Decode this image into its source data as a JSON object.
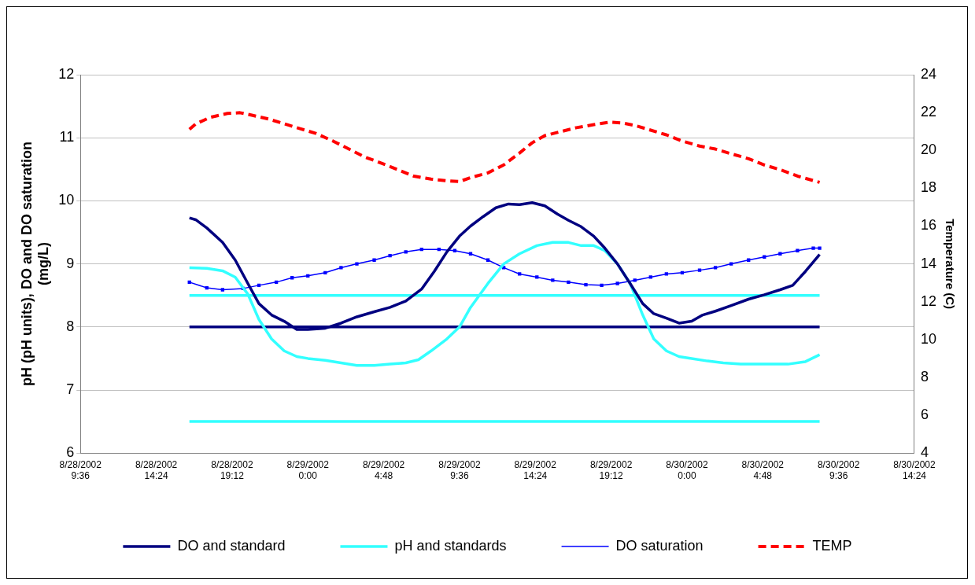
{
  "chart_data": {
    "type": "line",
    "ylabel": "pH (pH units), DO and DO saturation (mg/L)",
    "y2label": "Temperature (C)",
    "xlim": [
      "2002-08-28T09:36",
      "2002-08-30T14:24"
    ],
    "xticks": [
      {
        "value": "2002-08-28T09:36",
        "label": "8/28/2002 9:36"
      },
      {
        "value": "2002-08-28T14:24",
        "label": "8/28/2002 14:24"
      },
      {
        "value": "2002-08-28T19:12",
        "label": "8/28/2002 19:12"
      },
      {
        "value": "2002-08-29T00:00",
        "label": "8/29/2002 0:00"
      },
      {
        "value": "2002-08-29T04:48",
        "label": "8/29/2002 4:48"
      },
      {
        "value": "2002-08-29T09:36",
        "label": "8/29/2002 9:36"
      },
      {
        "value": "2002-08-29T14:24",
        "label": "8/29/2002 14:24"
      },
      {
        "value": "2002-08-29T19:12",
        "label": "8/29/2002 19:12"
      },
      {
        "value": "2002-08-30T00:00",
        "label": "8/30/2002 0:00"
      },
      {
        "value": "2002-08-30T04:48",
        "label": "8/30/2002 4:48"
      },
      {
        "value": "2002-08-30T09:36",
        "label": "8/30/2002 9:36"
      },
      {
        "value": "2002-08-30T14:24",
        "label": "8/30/2002 14:24"
      }
    ],
    "ylim": [
      6,
      12
    ],
    "yticks": [
      6,
      7,
      8,
      9,
      10,
      11,
      12
    ],
    "y2lim": [
      4,
      24
    ],
    "y2ticks": [
      4,
      6,
      8,
      10,
      12,
      14,
      16,
      18,
      20,
      22,
      24
    ],
    "grid": "y",
    "legend": "bottom",
    "line_style": "solid",
    "marker": "none",
    "ref_lines": [
      {
        "axis": "y",
        "value": 8,
        "color": "#000080"
      },
      {
        "axis": "y",
        "value": 8.5,
        "color": "#33ffff"
      },
      {
        "axis": "y",
        "value": 6.5,
        "color": "#33ffff"
      }
    ],
    "series": [
      {
        "name": "DO and standard",
        "color": "#000080",
        "x": [
          "2002-08-28T16:30",
          "2002-08-28T16:54",
          "2002-08-28T17:36",
          "2002-08-28T18:36",
          "2002-08-28T19:24",
          "2002-08-28T20:12",
          "2002-08-28T20:54",
          "2002-08-28T21:42",
          "2002-08-28T22:30",
          "2002-08-28T23:18",
          "2002-08-29T00:00",
          "2002-08-29T01:06",
          "2002-08-29T02:06",
          "2002-08-29T03:06",
          "2002-08-29T04:12",
          "2002-08-29T05:12",
          "2002-08-29T06:12",
          "2002-08-29T07:12",
          "2002-08-29T08:00",
          "2002-08-29T08:48",
          "2002-08-29T09:36",
          "2002-08-29T10:18",
          "2002-08-29T11:06",
          "2002-08-29T11:54",
          "2002-08-29T12:42",
          "2002-08-29T13:24",
          "2002-08-29T14:12",
          "2002-08-29T15:00",
          "2002-08-29T15:48",
          "2002-08-29T16:30",
          "2002-08-29T17:18",
          "2002-08-29T18:06",
          "2002-08-29T18:48",
          "2002-08-29T19:36",
          "2002-08-29T20:24",
          "2002-08-29T21:12",
          "2002-08-29T21:54",
          "2002-08-29T22:42",
          "2002-08-29T23:30",
          "2002-08-30T00:18",
          "2002-08-30T01:00",
          "2002-08-30T01:48",
          "2002-08-30T02:48",
          "2002-08-30T03:54",
          "2002-08-30T04:54",
          "2002-08-30T05:54",
          "2002-08-30T06:42",
          "2002-08-30T07:30",
          "2002-08-30T08:24"
        ],
        "values": [
          9.73,
          9.7,
          9.57,
          9.34,
          9.06,
          8.69,
          8.37,
          8.19,
          8.09,
          7.96,
          7.96,
          7.98,
          8.06,
          8.16,
          8.24,
          8.31,
          8.41,
          8.6,
          8.88,
          9.19,
          9.44,
          9.6,
          9.75,
          9.89,
          9.95,
          9.94,
          9.97,
          9.92,
          9.79,
          9.69,
          9.59,
          9.44,
          9.25,
          9.0,
          8.69,
          8.37,
          8.21,
          8.14,
          8.06,
          8.09,
          8.19,
          8.25,
          8.34,
          8.44,
          8.51,
          8.59,
          8.66,
          8.88,
          9.15
        ]
      },
      {
        "name": "pH and standards",
        "color": "#33ffff",
        "x": [
          "2002-08-28T16:30",
          "2002-08-28T17:36",
          "2002-08-28T18:36",
          "2002-08-28T19:24",
          "2002-08-28T20:12",
          "2002-08-28T20:54",
          "2002-08-28T21:42",
          "2002-08-28T22:30",
          "2002-08-28T23:18",
          "2002-08-29T00:00",
          "2002-08-29T01:06",
          "2002-08-29T02:06",
          "2002-08-29T03:06",
          "2002-08-29T04:12",
          "2002-08-29T05:12",
          "2002-08-29T06:12",
          "2002-08-29T07:00",
          "2002-08-29T07:48",
          "2002-08-29T08:48",
          "2002-08-29T09:36",
          "2002-08-29T10:18",
          "2002-08-29T11:24",
          "2002-08-29T12:24",
          "2002-08-29T13:24",
          "2002-08-29T14:30",
          "2002-08-29T15:30",
          "2002-08-29T16:30",
          "2002-08-29T17:18",
          "2002-08-29T18:06",
          "2002-08-29T18:48",
          "2002-08-29T19:36",
          "2002-08-29T20:24",
          "2002-08-29T21:12",
          "2002-08-29T21:54",
          "2002-08-29T22:42",
          "2002-08-29T23:30",
          "2002-08-30T00:18",
          "2002-08-30T01:18",
          "2002-08-30T02:18",
          "2002-08-30T03:24",
          "2002-08-30T04:24",
          "2002-08-30T05:24",
          "2002-08-30T06:24",
          "2002-08-30T07:30",
          "2002-08-30T08:24"
        ],
        "values": [
          8.94,
          8.93,
          8.89,
          8.79,
          8.52,
          8.12,
          7.81,
          7.62,
          7.53,
          7.5,
          7.47,
          7.43,
          7.39,
          7.39,
          7.41,
          7.43,
          7.48,
          7.62,
          7.81,
          8.0,
          8.31,
          8.69,
          9.0,
          9.16,
          9.29,
          9.34,
          9.34,
          9.29,
          9.29,
          9.21,
          9.0,
          8.69,
          8.19,
          7.81,
          7.62,
          7.53,
          7.5,
          7.46,
          7.43,
          7.41,
          7.41,
          7.41,
          7.41,
          7.45,
          7.56
        ]
      },
      {
        "name": "DO saturation",
        "color": "#0000ff",
        "marker": "square",
        "x": [
          "2002-08-28T16:30",
          "2002-08-28T17:36",
          "2002-08-28T18:36",
          "2002-08-28T19:54",
          "2002-08-28T20:54",
          "2002-08-28T22:00",
          "2002-08-28T23:00",
          "2002-08-29T00:00",
          "2002-08-29T01:06",
          "2002-08-29T02:06",
          "2002-08-29T03:06",
          "2002-08-29T04:12",
          "2002-08-29T05:12",
          "2002-08-29T06:12",
          "2002-08-29T07:12",
          "2002-08-29T08:18",
          "2002-08-29T09:18",
          "2002-08-29T10:18",
          "2002-08-29T11:24",
          "2002-08-29T12:24",
          "2002-08-29T13:24",
          "2002-08-29T14:30",
          "2002-08-29T15:30",
          "2002-08-29T16:30",
          "2002-08-29T17:36",
          "2002-08-29T18:36",
          "2002-08-29T19:36",
          "2002-08-29T20:42",
          "2002-08-29T21:42",
          "2002-08-29T22:42",
          "2002-08-29T23:42",
          "2002-08-30T00:48",
          "2002-08-30T01:48",
          "2002-08-30T02:48",
          "2002-08-30T03:54",
          "2002-08-30T04:54",
          "2002-08-30T05:54",
          "2002-08-30T07:00",
          "2002-08-30T08:00",
          "2002-08-30T08:24"
        ],
        "values": [
          8.71,
          8.62,
          8.59,
          8.61,
          8.66,
          8.71,
          8.78,
          8.81,
          8.86,
          8.94,
          9.0,
          9.06,
          9.13,
          9.19,
          9.23,
          9.23,
          9.21,
          9.16,
          9.06,
          8.94,
          8.84,
          8.79,
          8.74,
          8.71,
          8.67,
          8.66,
          8.69,
          8.74,
          8.79,
          8.84,
          8.86,
          8.9,
          8.94,
          9.0,
          9.06,
          9.11,
          9.16,
          9.21,
          9.25,
          9.25
        ]
      },
      {
        "name": "TEMP",
        "color": "#ff0000",
        "axis": "y2",
        "line_style": "dashed",
        "x": [
          "2002-08-28T16:30",
          "2002-08-28T16:54",
          "2002-08-28T17:48",
          "2002-08-28T18:54",
          "2002-08-28T19:42",
          "2002-08-28T20:24",
          "2002-08-28T21:30",
          "2002-08-28T22:30",
          "2002-08-28T23:30",
          "2002-08-29T00:30",
          "2002-08-29T01:36",
          "2002-08-29T02:36",
          "2002-08-29T03:36",
          "2002-08-29T04:42",
          "2002-08-29T05:42",
          "2002-08-29T06:42",
          "2002-08-29T07:48",
          "2002-08-29T08:48",
          "2002-08-29T09:36",
          "2002-08-29T10:18",
          "2002-08-29T11:24",
          "2002-08-29T12:24",
          "2002-08-29T13:24",
          "2002-08-29T14:12",
          "2002-08-29T15:00",
          "2002-08-29T16:00",
          "2002-08-29T17:00",
          "2002-08-29T18:06",
          "2002-08-29T19:06",
          "2002-08-29T19:54",
          "2002-08-29T20:42",
          "2002-08-29T21:42",
          "2002-08-29T22:42",
          "2002-08-29T23:42",
          "2002-08-30T00:48",
          "2002-08-30T01:48",
          "2002-08-30T02:48",
          "2002-08-30T03:54",
          "2002-08-30T04:54",
          "2002-08-30T05:54",
          "2002-08-30T07:00",
          "2002-08-30T08:24"
        ],
        "values": [
          21.11,
          21.4,
          21.74,
          21.95,
          21.99,
          21.87,
          21.66,
          21.41,
          21.15,
          20.9,
          20.49,
          20.07,
          19.65,
          19.31,
          18.98,
          18.64,
          18.48,
          18.39,
          18.35,
          18.56,
          18.81,
          19.23,
          19.86,
          20.4,
          20.78,
          20.99,
          21.2,
          21.36,
          21.49,
          21.45,
          21.32,
          21.07,
          20.82,
          20.49,
          20.23,
          20.07,
          19.82,
          19.56,
          19.23,
          18.98,
          18.64,
          18.31
        ]
      }
    ]
  }
}
